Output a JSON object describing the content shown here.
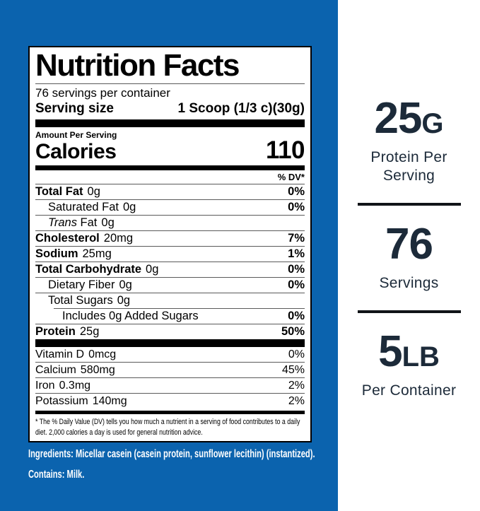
{
  "colors": {
    "panel_blue": "#0b63ae",
    "stat_navy": "#1c2a39",
    "label_black": "#000000"
  },
  "label": {
    "title": "Nutrition Facts",
    "servings_line": "76 servings per container",
    "serving_size_label": "Serving size",
    "serving_size_value": "1 Scoop (1/3 c)(30g)",
    "amount_per_serving": "Amount Per Serving",
    "calories_label": "Calories",
    "calories_value": "110",
    "dv_header": "% DV*",
    "rows": [
      {
        "name": "Total Fat",
        "amount": "0g",
        "dv": "0%",
        "bold": true,
        "indent": 0
      },
      {
        "name": "Saturated Fat",
        "amount": "0g",
        "dv": "0%",
        "bold": false,
        "indent": 1
      },
      {
        "name": "Trans Fat",
        "italic_word": "Trans",
        "amount": "0g",
        "dv": "",
        "bold": false,
        "indent": 1
      },
      {
        "name": "Cholesterol",
        "amount": "20mg",
        "dv": "7%",
        "bold": true,
        "indent": 0
      },
      {
        "name": "Sodium",
        "amount": "25mg",
        "dv": "1%",
        "bold": true,
        "indent": 0
      },
      {
        "name": "Total Carbohydrate",
        "amount": "0g",
        "dv": "0%",
        "bold": true,
        "indent": 0
      },
      {
        "name": "Dietary Fiber",
        "amount": "0g",
        "dv": "0%",
        "bold": false,
        "indent": 1
      },
      {
        "name": "Total Sugars",
        "amount": "0g",
        "dv": "",
        "bold": false,
        "indent": 1
      },
      {
        "name": "Includes 0g Added Sugars",
        "amount": "",
        "dv": "0%",
        "bold": false,
        "indent": 2,
        "inset_separator": true
      },
      {
        "name": "Protein",
        "amount": "25g",
        "dv": "50%",
        "bold": true,
        "indent": 0
      }
    ],
    "vitamins": [
      {
        "name": "Vitamin D",
        "amount": "0mcg",
        "dv": "0%"
      },
      {
        "name": "Calcium",
        "amount": "580mg",
        "dv": "45%"
      },
      {
        "name": "Iron",
        "amount": "0.3mg",
        "dv": "2%"
      },
      {
        "name": "Potassium",
        "amount": "140mg",
        "dv": "2%"
      }
    ],
    "footnote": "* The % Daily Value (DV) tells you how much a nutrient in a serving of food contributes to a daily diet. 2,000 calories a day is used for general nutrition advice."
  },
  "ingredients": {
    "ingredients_text": "Ingredients: Micellar casein (casein protein, sunflower lecithin) (instantized).",
    "contains_text": "Contains: Milk."
  },
  "stats": [
    {
      "value": "25",
      "unit": "G",
      "label": "Protein Per Serving"
    },
    {
      "value": "76",
      "unit": "",
      "label": "Servings"
    },
    {
      "value": "5",
      "unit": "LB",
      "label": "Per Container"
    }
  ]
}
